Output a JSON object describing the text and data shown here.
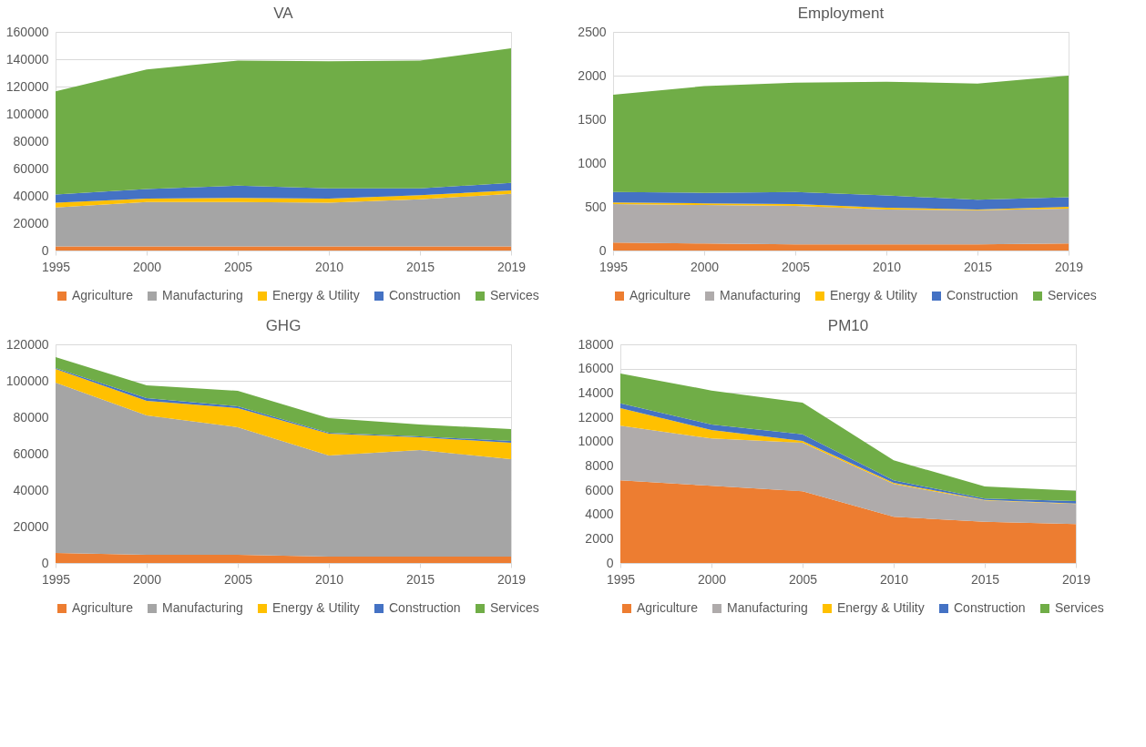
{
  "chart_data": [
    {
      "type": "area",
      "title": "VA",
      "stacked": true,
      "grid": "y",
      "legend": "bottom",
      "categories": [
        "1995",
        "2000",
        "2005",
        "2010",
        "2015",
        "2019"
      ],
      "ylim": [
        0,
        160000
      ],
      "yticks": [
        0,
        20000,
        40000,
        60000,
        80000,
        100000,
        120000,
        140000,
        160000
      ],
      "series": [
        {
          "name": "Agriculture",
          "color": "#ed7d31",
          "values": [
            3000,
            3000,
            3000,
            3000,
            3000,
            3000
          ]
        },
        {
          "name": "Manufacturing",
          "color": "#a5a5a5",
          "values": [
            28500,
            32500,
            32500,
            32000,
            34500,
            38500
          ]
        },
        {
          "name": "Energy & Utility",
          "color": "#ffc000",
          "values": [
            3500,
            2500,
            3000,
            3000,
            3000,
            2500
          ]
        },
        {
          "name": "Construction",
          "color": "#4472c4",
          "values": [
            6000,
            7000,
            9000,
            7500,
            5000,
            5500
          ]
        },
        {
          "name": "Services",
          "color": "#70ad47",
          "values": [
            75500,
            87500,
            91500,
            93000,
            93500,
            98500
          ]
        }
      ]
    },
    {
      "type": "area",
      "title": "Employment",
      "stacked": true,
      "grid": "y",
      "legend": "bottom",
      "categories": [
        "1995",
        "2000",
        "2005",
        "2010",
        "2015",
        "2019"
      ],
      "ylim": [
        0,
        2500
      ],
      "yticks": [
        0,
        500,
        1000,
        1500,
        2000,
        2500
      ],
      "series": [
        {
          "name": "Agriculture",
          "color": "#ed7d31",
          "values": [
            90,
            80,
            70,
            70,
            70,
            80
          ]
        },
        {
          "name": "Manufacturing",
          "color": "#afabab",
          "values": [
            440,
            440,
            440,
            400,
            390,
            400
          ]
        },
        {
          "name": "Energy & Utility",
          "color": "#ffc000",
          "values": [
            20,
            20,
            20,
            20,
            10,
            20
          ]
        },
        {
          "name": "Construction",
          "color": "#4472c4",
          "values": [
            120,
            120,
            140,
            140,
            110,
            110
          ]
        },
        {
          "name": "Services",
          "color": "#70ad47",
          "values": [
            1110,
            1220,
            1250,
            1300,
            1330,
            1390
          ]
        }
      ]
    },
    {
      "type": "area",
      "title": "GHG",
      "stacked": true,
      "grid": "y",
      "legend": "bottom",
      "categories": [
        "1995",
        "2000",
        "2005",
        "2010",
        "2015",
        "2019"
      ],
      "ylim": [
        0,
        120000
      ],
      "yticks": [
        0,
        20000,
        40000,
        60000,
        80000,
        100000,
        120000
      ],
      "series": [
        {
          "name": "Agriculture",
          "color": "#ed7d31",
          "values": [
            5500,
            4500,
            4500,
            3500,
            3500,
            3500
          ]
        },
        {
          "name": "Manufacturing",
          "color": "#a5a5a5",
          "values": [
            93500,
            76500,
            70000,
            55500,
            58500,
            53500
          ]
        },
        {
          "name": "Energy & Utility",
          "color": "#ffc000",
          "values": [
            7500,
            8000,
            10500,
            12000,
            7000,
            9000
          ]
        },
        {
          "name": "Construction",
          "color": "#4472c4",
          "values": [
            500,
            1500,
            1000,
            500,
            500,
            1000
          ]
        },
        {
          "name": "Services",
          "color": "#70ad47",
          "values": [
            6000,
            7000,
            8500,
            8000,
            6500,
            6500
          ]
        }
      ]
    },
    {
      "type": "area",
      "title": "PM10",
      "stacked": true,
      "grid": "y",
      "legend": "bottom",
      "categories": [
        "1995",
        "2000",
        "2005",
        "2010",
        "2015",
        "2019"
      ],
      "ylim": [
        0,
        18000
      ],
      "yticks": [
        0,
        2000,
        4000,
        6000,
        8000,
        10000,
        12000,
        14000,
        16000,
        18000
      ],
      "series": [
        {
          "name": "Agriculture",
          "color": "#ed7d31",
          "values": [
            6800,
            6350,
            5900,
            3800,
            3400,
            3200
          ]
        },
        {
          "name": "Manufacturing",
          "color": "#afabab",
          "values": [
            4500,
            3900,
            4000,
            2700,
            1750,
            1650
          ]
        },
        {
          "name": "Energy & Utility",
          "color": "#ffc000",
          "values": [
            1450,
            700,
            150,
            100,
            50,
            50
          ]
        },
        {
          "name": "Construction",
          "color": "#4472c4",
          "values": [
            400,
            450,
            550,
            200,
            100,
            200
          ]
        },
        {
          "name": "Services",
          "color": "#70ad47",
          "values": [
            2450,
            2800,
            2600,
            1650,
            1000,
            850
          ]
        }
      ]
    }
  ]
}
